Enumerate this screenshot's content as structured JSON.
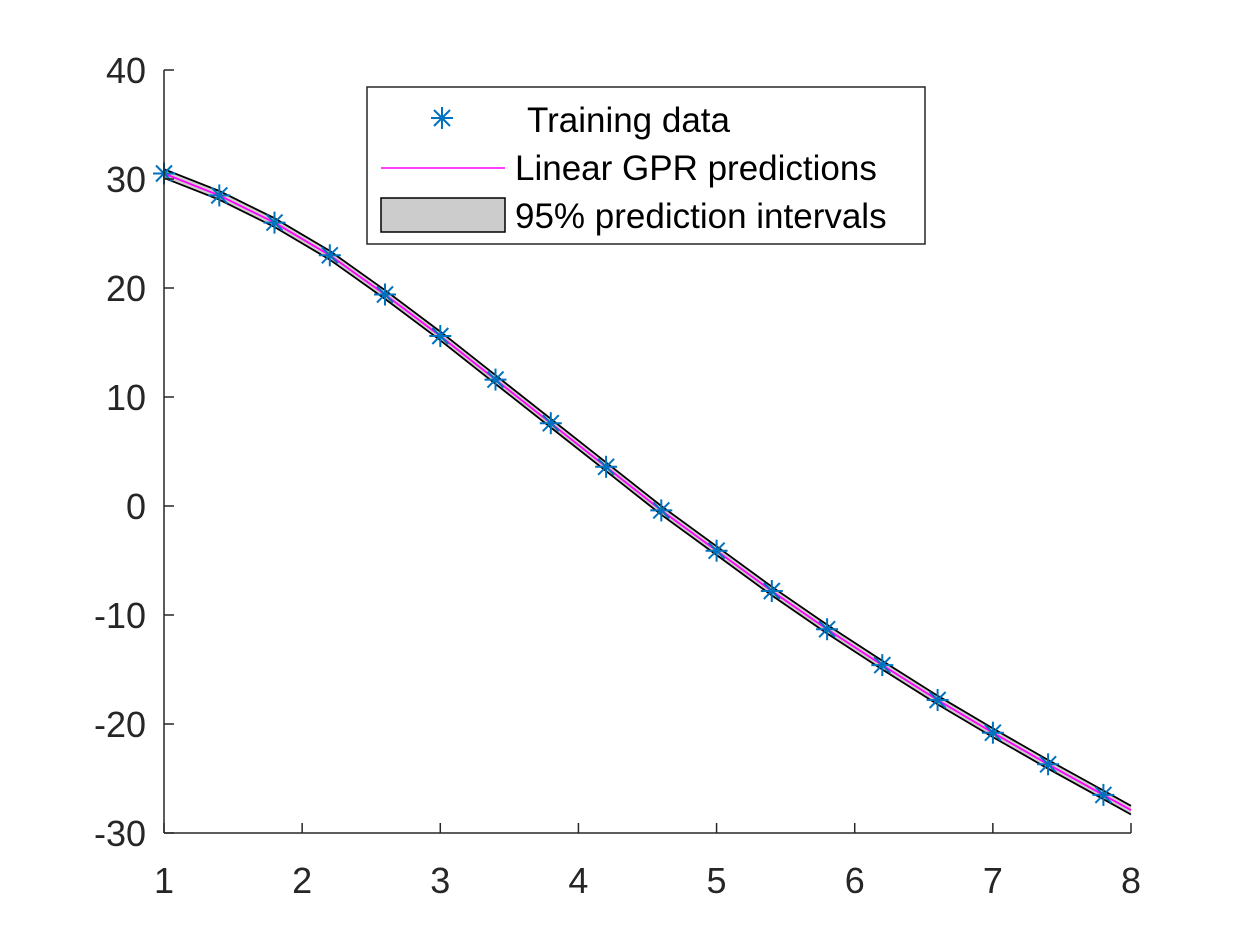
{
  "chart_data": {
    "type": "line",
    "title": "",
    "xlabel": "",
    "ylabel": "",
    "xlim": [
      1,
      8
    ],
    "ylim": [
      -30,
      40
    ],
    "grid": false,
    "legend_position": "top-center",
    "x_ticks": [
      1,
      2,
      3,
      4,
      5,
      6,
      7,
      8
    ],
    "y_ticks": [
      -30,
      -20,
      -10,
      0,
      10,
      20,
      30,
      40
    ],
    "x_tick_labels": [
      "1",
      "2",
      "3",
      "4",
      "5",
      "6",
      "7",
      "8"
    ],
    "y_tick_labels": [
      "-30",
      "-20",
      "-10",
      "0",
      "10",
      "20",
      "30",
      "40"
    ],
    "series": [
      {
        "name": "Training data",
        "kind": "scatter",
        "marker": "asterisk",
        "color": "#0072BD",
        "x": [
          1.0,
          1.4,
          1.8,
          2.2,
          2.6,
          3.0,
          3.4,
          3.8,
          4.2,
          4.6,
          5.0,
          5.4,
          5.8,
          6.2,
          6.6,
          7.0,
          7.4,
          7.8
        ],
        "y": [
          30.5,
          28.5,
          26.0,
          23.0,
          19.4,
          15.6,
          11.6,
          7.6,
          3.6,
          -0.4,
          -4.1,
          -7.8,
          -11.3,
          -14.6,
          -17.8,
          -20.8,
          -23.7,
          -26.5
        ]
      },
      {
        "name": "Linear GPR predictions",
        "kind": "line",
        "color": "#FF00FF",
        "x": [
          1.0,
          1.4,
          1.8,
          2.2,
          2.6,
          3.0,
          3.4,
          3.8,
          4.2,
          4.6,
          5.0,
          5.4,
          5.8,
          6.2,
          6.6,
          7.0,
          7.4,
          7.8,
          8.0
        ],
        "y": [
          30.5,
          28.5,
          26.0,
          23.0,
          19.4,
          15.6,
          11.6,
          7.6,
          3.6,
          -0.4,
          -4.1,
          -7.8,
          -11.3,
          -14.6,
          -17.8,
          -20.8,
          -23.7,
          -26.5,
          -27.9
        ]
      },
      {
        "name": "95% prediction intervals",
        "kind": "band",
        "fill": "#CCCCCC",
        "edge": "#000000",
        "x": [
          1.0,
          1.4,
          1.8,
          2.2,
          2.6,
          3.0,
          3.4,
          3.8,
          4.2,
          4.6,
          5.0,
          5.4,
          5.8,
          6.2,
          6.6,
          7.0,
          7.4,
          7.8,
          8.0
        ],
        "lower": [
          30.1,
          28.1,
          25.6,
          22.6,
          19.0,
          15.2,
          11.2,
          7.2,
          3.2,
          -0.8,
          -4.5,
          -8.2,
          -11.7,
          -15.0,
          -18.2,
          -21.2,
          -24.1,
          -26.9,
          -28.3
        ],
        "upper": [
          30.9,
          28.9,
          26.4,
          23.4,
          19.8,
          16.0,
          12.0,
          8.0,
          4.0,
          0.0,
          -3.7,
          -7.4,
          -10.9,
          -14.2,
          -17.4,
          -20.4,
          -23.3,
          -26.1,
          -27.5
        ]
      }
    ]
  },
  "legend": {
    "items": [
      {
        "label": "Training data"
      },
      {
        "label": "Linear GPR predictions"
      },
      {
        "label": "95% prediction intervals"
      }
    ]
  }
}
